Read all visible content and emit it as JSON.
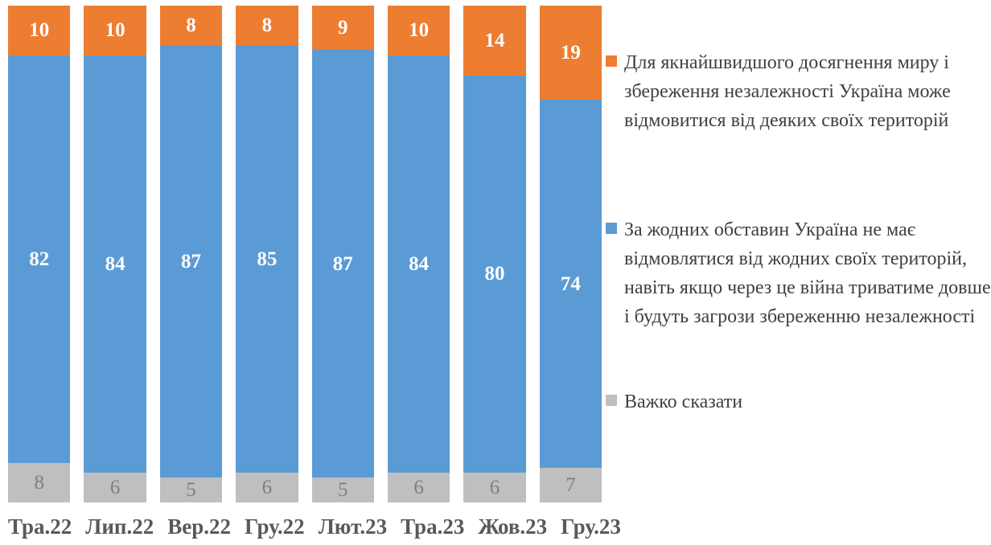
{
  "chart_data": {
    "type": "bar",
    "subtype": "stacked-100-percent",
    "orientation": "vertical",
    "title": "",
    "xlabel": "",
    "ylabel": "",
    "ylim": [
      0,
      100
    ],
    "grid": false,
    "legend_position": "right",
    "categories": [
      "Тра.22",
      "Лип.22",
      "Вер.22",
      "Гру.22",
      "Лют.23",
      "Тра.23",
      "Жов.23",
      "Гру.23"
    ],
    "series": [
      {
        "name": "Для якнайшвидшого досягнення миру і збереження незалежності Україна може відмовитися від деяких своїх територій",
        "color": "#ED7D31",
        "label_color": "#FFFFFF",
        "label_bold": true,
        "values": [
          10,
          10,
          8,
          8,
          9,
          10,
          14,
          19
        ]
      },
      {
        "name": "За жодних обставин Україна не має відмовлятися від жодних своїх територій, навіть якщо через це війна триватиме довше і будуть загрози збереженню незалежності",
        "color": "#5B9BD5",
        "label_color": "#FFFFFF",
        "label_bold": true,
        "values": [
          82,
          84,
          87,
          85,
          87,
          84,
          80,
          74
        ]
      },
      {
        "name": "Важко сказати",
        "color": "#BFBFBF",
        "label_color": "#7F7F7F",
        "label_bold": false,
        "values": [
          8,
          6,
          5,
          6,
          5,
          6,
          6,
          7
        ]
      }
    ]
  }
}
